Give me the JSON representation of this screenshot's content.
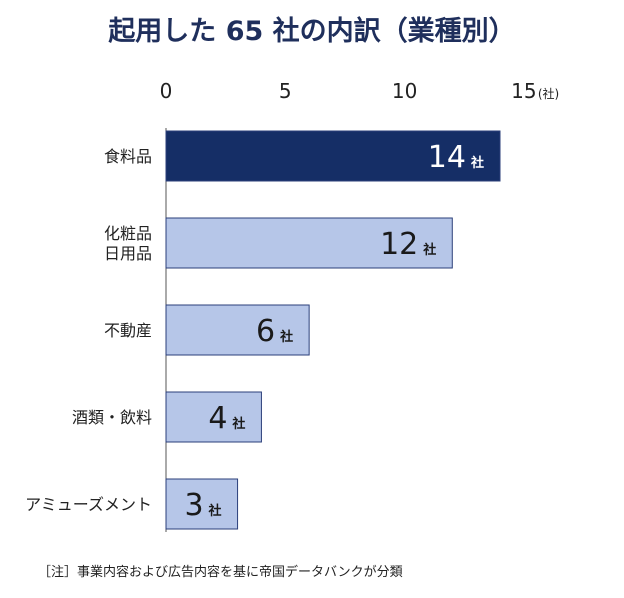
{
  "chart_data": {
    "type": "bar",
    "orientation": "horizontal",
    "title": "起用した 65 社の内訳（業種別）",
    "unit_label": "(社)",
    "value_suffix": "社",
    "xlim": [
      0,
      15
    ],
    "ticks": [
      "0",
      "5",
      "10",
      "15"
    ],
    "grid": false,
    "legend": "none",
    "categories": [
      [
        "食料品"
      ],
      [
        "化粧品",
        "日用品"
      ],
      [
        "不動産"
      ],
      [
        "酒類・飲料"
      ],
      [
        "アミューズメント"
      ]
    ],
    "values": [
      14,
      12,
      6,
      4,
      3
    ],
    "highlight_index": 0,
    "colors": {
      "highlight_fill": "#152e66",
      "fill": "#b6c6e8",
      "stroke": "#2b3f7a",
      "highlight_text": "#ffffff",
      "text": "#1a1a1a",
      "title": "#1f2f5c"
    },
    "note": "［注］事業内容および広告内容を基に帝国データバンクが分類"
  }
}
